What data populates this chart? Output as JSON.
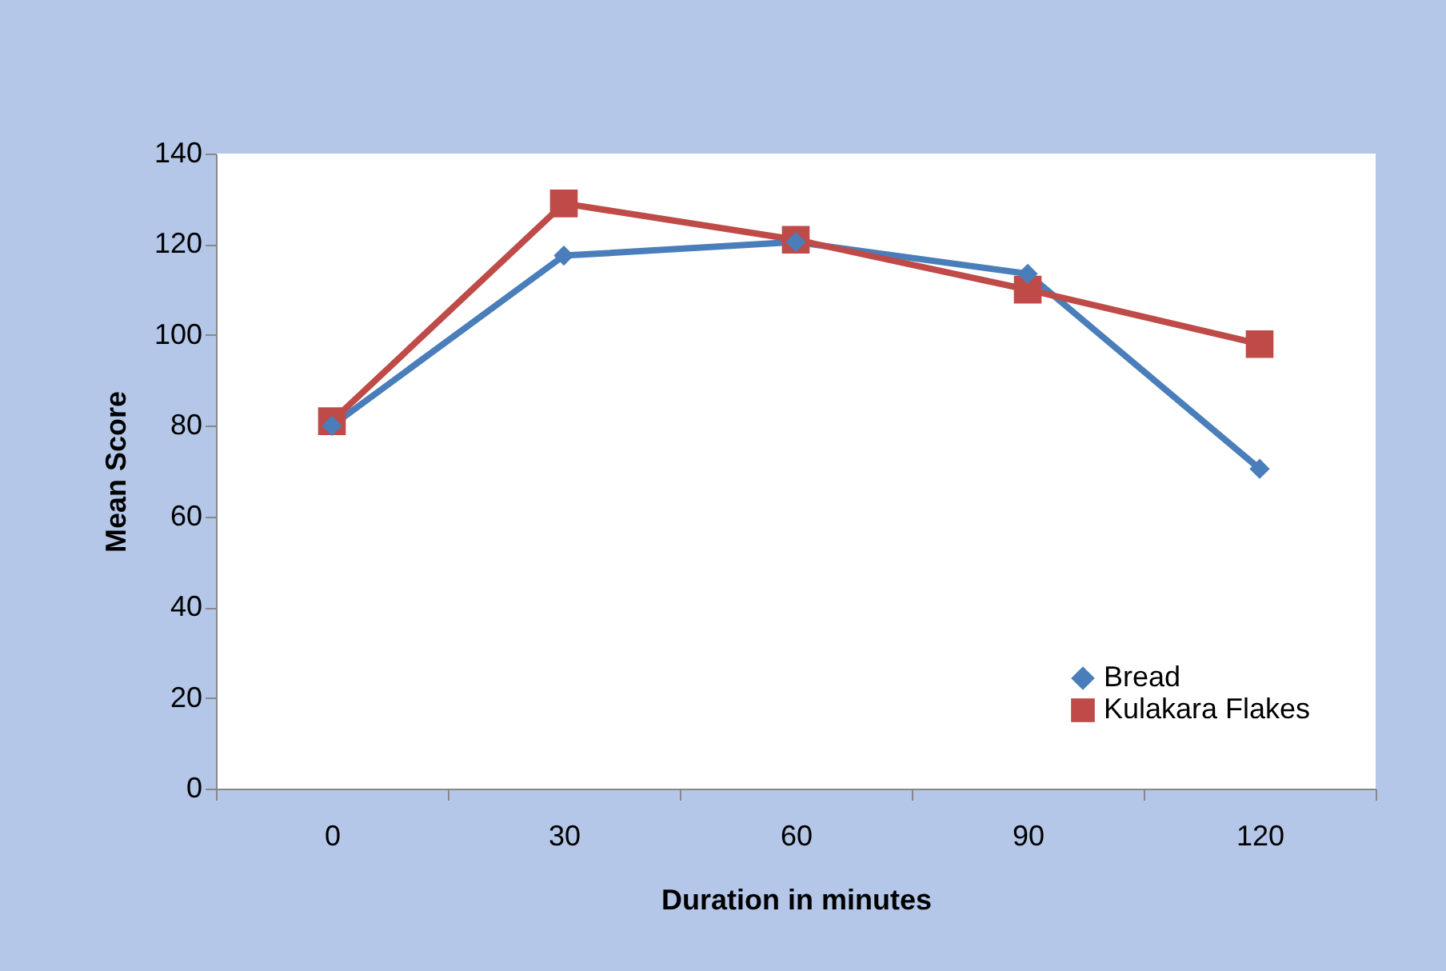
{
  "chart_data": {
    "type": "line",
    "xlabel": "Duration in minutes",
    "ylabel": "Mean Score",
    "categories": [
      "0",
      "30",
      "60",
      "90",
      "120"
    ],
    "series": [
      {
        "name": "Bread",
        "color": "#4a7ebb",
        "marker": "diamond",
        "values": [
          80,
          117.5,
          120.5,
          113.5,
          70.5
        ]
      },
      {
        "name": "Kulakara Flakes",
        "color": "#be4b48",
        "marker": "square",
        "values": [
          81,
          129,
          121,
          110,
          98
        ]
      }
    ],
    "ylim": [
      0,
      140
    ],
    "yticks": [
      0,
      20,
      40,
      60,
      80,
      100,
      120,
      140
    ],
    "grid": false,
    "legend": "bottom right"
  }
}
